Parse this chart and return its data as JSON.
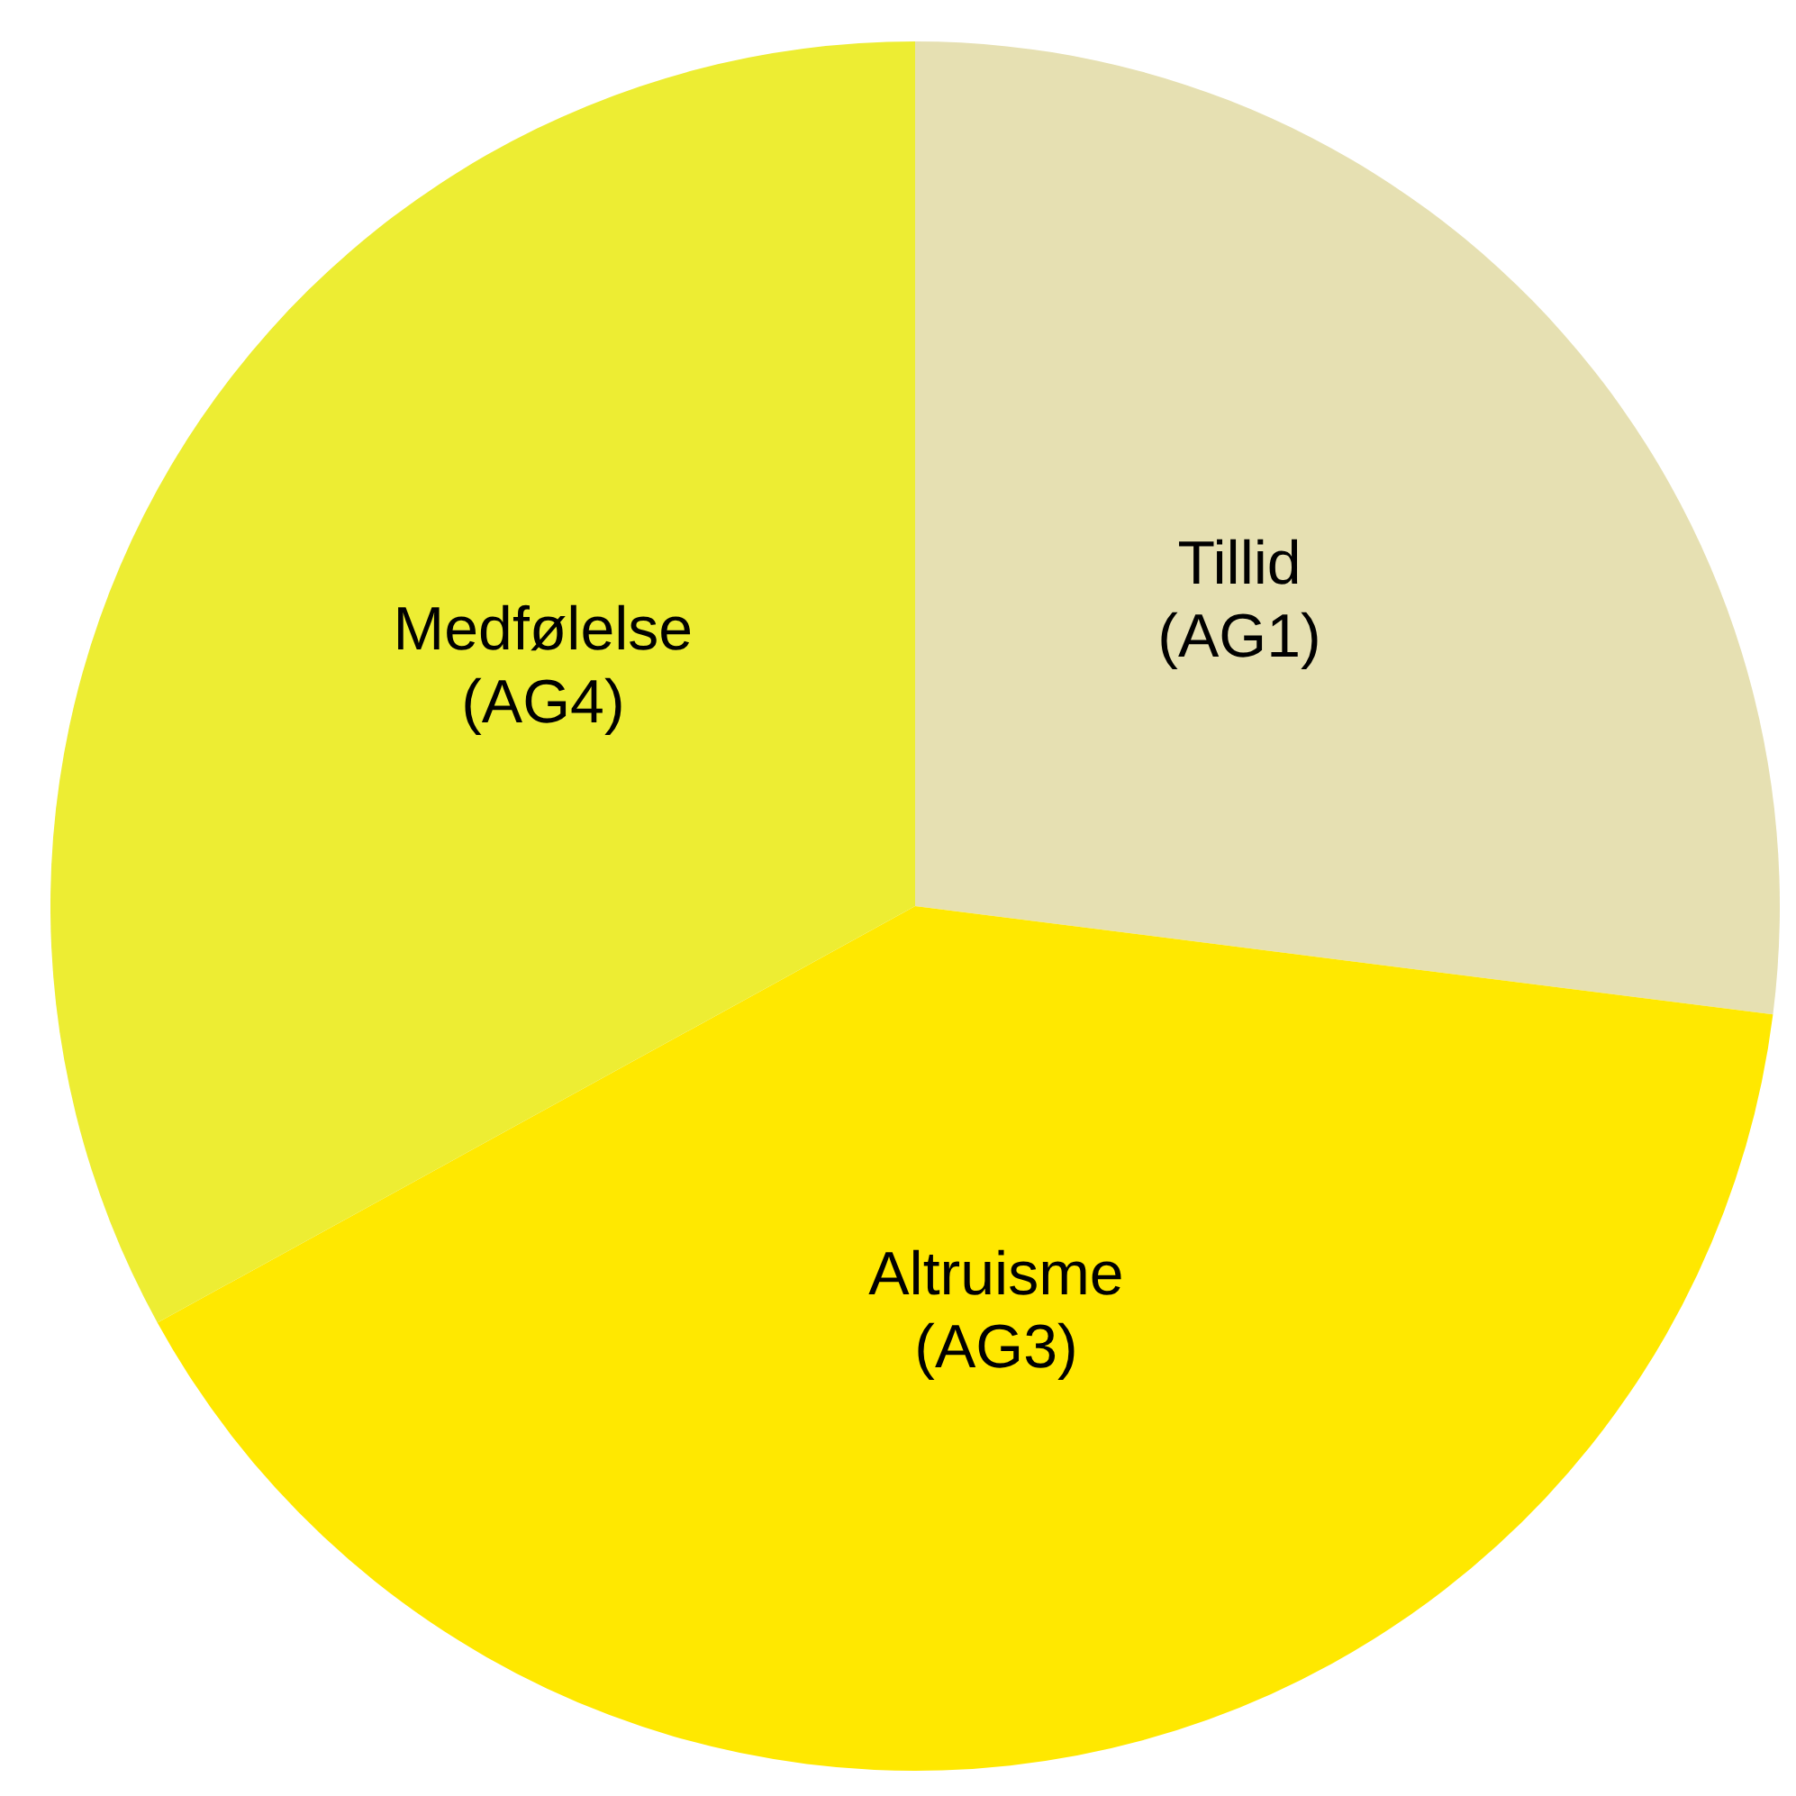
{
  "chart_data": {
    "type": "pie",
    "categories": [
      "Tillid\n(AG1)",
      "Altruisme\n(AG3)",
      "Medfølelse\n(AG4)"
    ],
    "values": [
      27,
      40,
      33
    ],
    "colors": [
      "#e6e0b2",
      "#ffe800",
      "#eded33"
    ]
  }
}
